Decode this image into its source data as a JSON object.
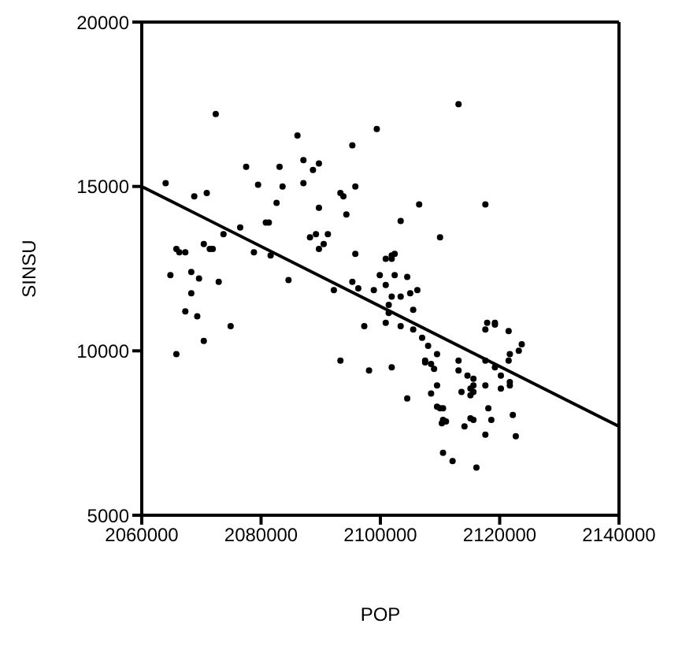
{
  "chart_data": {
    "type": "scatter",
    "xlabel": "POP",
    "ylabel": "SINSU",
    "xlim": [
      2060000,
      2140000
    ],
    "xticks": [
      2060000,
      2080000,
      2100000,
      2120000,
      2140000
    ],
    "ylim": [
      5000,
      20000
    ],
    "yticks": [
      5000,
      10000,
      15000,
      20000
    ],
    "marker": "circle",
    "series": [
      {
        "color": "#000000",
        "x": [
          2064000,
          2068800,
          2070900,
          2077500,
          2083100,
          2079500,
          2083600,
          2082600,
          2086100,
          2087100,
          2089700,
          2088700,
          2087100,
          2095300,
          2099400,
          2093300,
          2093800,
          2095800,
          2094300,
          2089700,
          2080800,
          2081300,
          2076500,
          2073700,
          2088200,
          2089200,
          2091200,
          2090500,
          2089700,
          2095800,
          2100900,
          2070400,
          2071900,
          2071400,
          2065800,
          2066300,
          2067300,
          2078800,
          2081600,
          2068300,
          2064800,
          2069600,
          2072900,
          2084600,
          2092200,
          2095300,
          2096300,
          2098900,
          2099900,
          2100900,
          2068300,
          2067300,
          2069300,
          2074900,
          2070400,
          2065800,
          2097300,
          2100900,
          2093300,
          2098100,
          2072400,
          2113100,
          2106500,
          2117600,
          2103400,
          2110000,
          2102400,
          2101900,
          2101900,
          2104500,
          2102400,
          2106200,
          2105000,
          2103400,
          2101900,
          2105500,
          2101400,
          2101400,
          2117900,
          2119200,
          2119200,
          2117600,
          2121500,
          2103400,
          2105500,
          2107000,
          2107500,
          2108000,
          2107500,
          2108500,
          2109000,
          2109500,
          2113100,
          2113100,
          2114600,
          2115600,
          2117600,
          2119200,
          2117600,
          2120200,
          2121700,
          2120200,
          2121700,
          2123200,
          2121500,
          2121700,
          2123700,
          2101900,
          2104500,
          2109500,
          2108500,
          2110500,
          2109500,
          2110000,
          2113600,
          2115100,
          2115600,
          2115100,
          2115600,
          2110500,
          2111000,
          2110300,
          2114100,
          2115100,
          2115600,
          2118100,
          2117600,
          2118600,
          2122200,
          2122700,
          2110500,
          2112100,
          2116100
        ],
        "values": [
          15100,
          14700,
          14800,
          15600,
          15600,
          15050,
          15000,
          14500,
          16550,
          15800,
          15700,
          15500,
          15100,
          16250,
          16750,
          14800,
          14700,
          15000,
          14150,
          14350,
          13900,
          13900,
          13750,
          13550,
          13450,
          13550,
          13550,
          13250,
          13100,
          12950,
          12800,
          13250,
          13100,
          13100,
          13100,
          13000,
          13000,
          13000,
          12900,
          12400,
          12300,
          12200,
          12100,
          12150,
          11850,
          12100,
          11900,
          11850,
          12300,
          12000,
          11750,
          11200,
          11050,
          10750,
          10300,
          9900,
          10750,
          10850,
          9700,
          9400,
          17200,
          17500,
          14450,
          14450,
          13950,
          13450,
          12950,
          12900,
          12800,
          12250,
          12300,
          11850,
          11750,
          11650,
          11650,
          11250,
          11400,
          11150,
          10850,
          10850,
          10800,
          10650,
          10600,
          10750,
          10650,
          10400,
          9700,
          10150,
          9650,
          9600,
          9450,
          9900,
          9700,
          9400,
          9250,
          9150,
          9700,
          9500,
          8950,
          9250,
          9050,
          8850,
          8950,
          10000,
          9700,
          9900,
          10200,
          9500,
          8550,
          8950,
          8700,
          8250,
          8300,
          8250,
          8750,
          8850,
          8750,
          8650,
          8950,
          7900,
          7850,
          7800,
          7700,
          7950,
          7900,
          8250,
          7450,
          7900,
          8050,
          7400,
          6900,
          6650,
          6450
        ]
      },
      {
        "type": "line",
        "color": "#000000",
        "x": [
          2060000,
          2140000
        ],
        "values": [
          15000,
          7700
        ],
        "marker": "none"
      }
    ]
  }
}
